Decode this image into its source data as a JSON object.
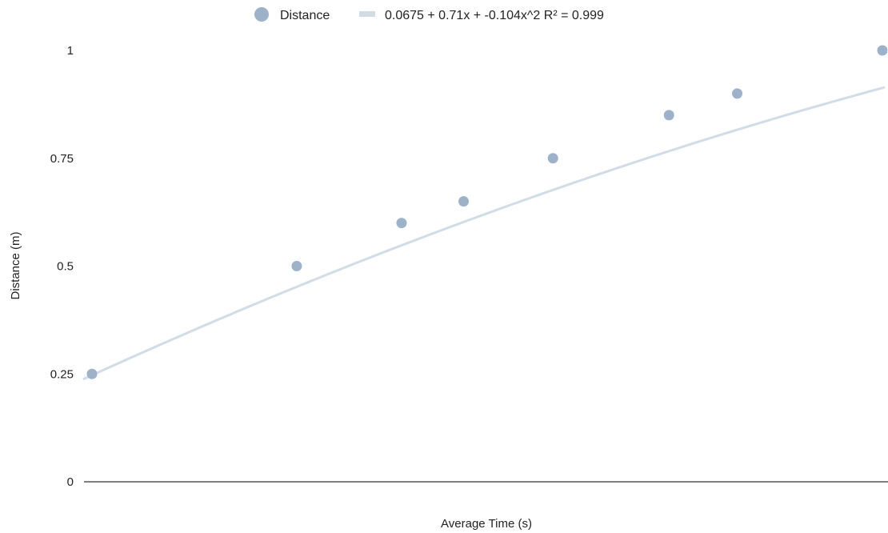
{
  "chart_data": {
    "type": "scatter",
    "title": "",
    "xlabel": "Average Time (s)",
    "ylabel": "Distance (m)",
    "xlim": [
      0.25,
      1.55
    ],
    "ylim": [
      0,
      1
    ],
    "yticks": [
      {
        "value": 0,
        "label": "0"
      },
      {
        "value": 0.25,
        "label": "0.25"
      },
      {
        "value": 0.5,
        "label": "0.5"
      },
      {
        "value": 0.75,
        "label": "0.75"
      },
      {
        "value": 1,
        "label": "1"
      }
    ],
    "grid": false,
    "legend_position": "top-center",
    "series": [
      {
        "name": "Distance",
        "kind": "points",
        "color": "#9db2c8",
        "points": [
          {
            "x": 0.263,
            "y": 0.25
          },
          {
            "x": 0.593,
            "y": 0.5
          },
          {
            "x": 0.762,
            "y": 0.6
          },
          {
            "x": 0.862,
            "y": 0.65
          },
          {
            "x": 1.006,
            "y": 0.75
          },
          {
            "x": 1.193,
            "y": 0.85
          },
          {
            "x": 1.303,
            "y": 0.9
          },
          {
            "x": 1.537,
            "y": 1.0
          }
        ]
      },
      {
        "name": "0.0675 + 0.71x + -0.104x^2 R² = 0.999",
        "kind": "trendline",
        "color": "#d2dce6",
        "coefficients": [
          0.0675,
          0.71,
          -0.104
        ]
      }
    ]
  }
}
